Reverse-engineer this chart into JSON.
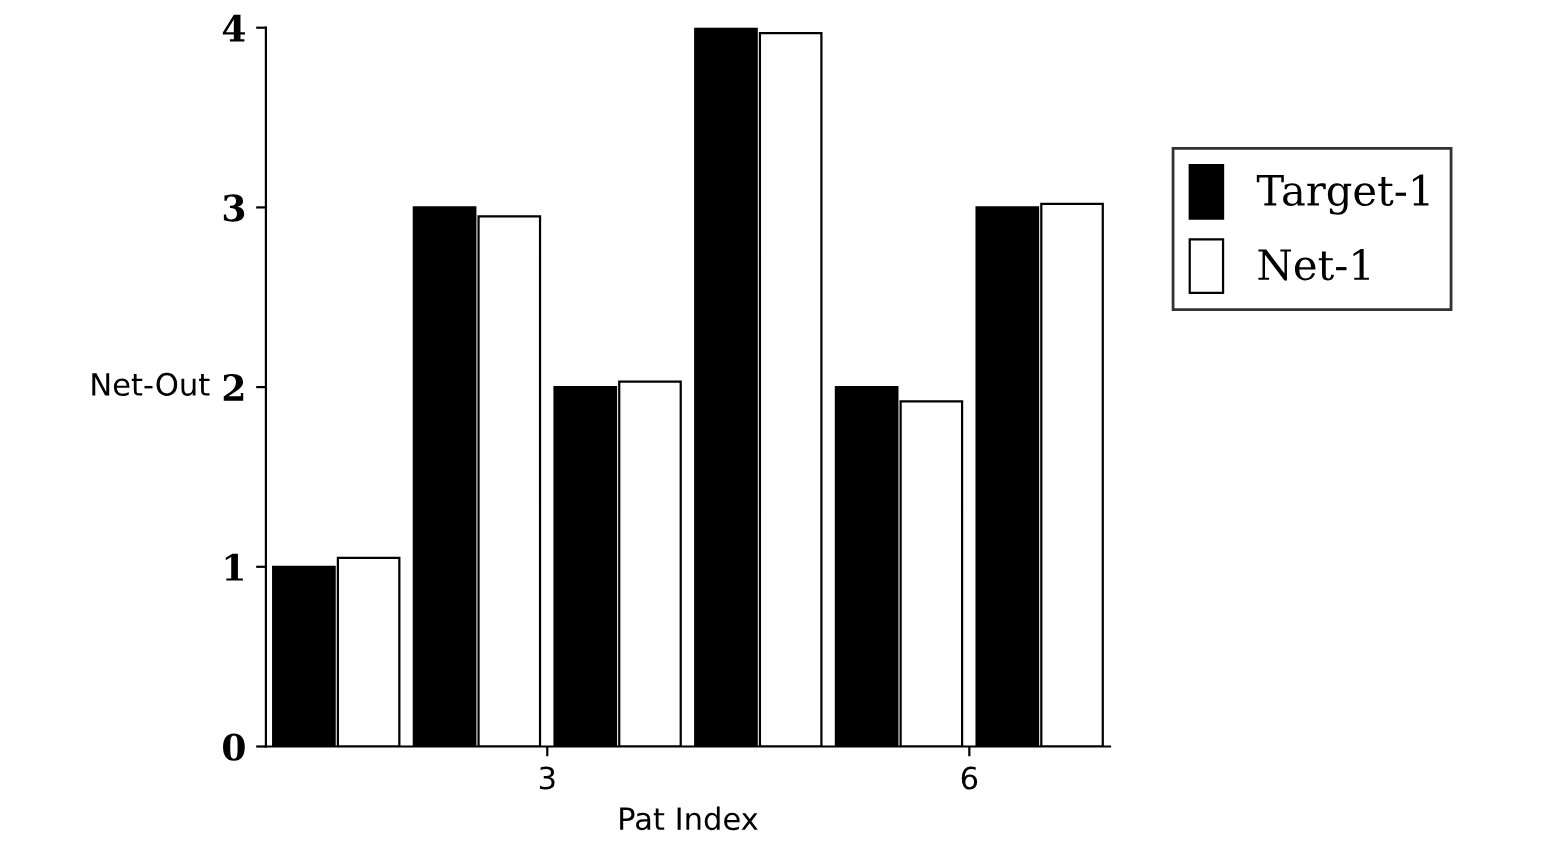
{
  "chart_data": {
    "type": "bar",
    "xlabel": "Pat Index",
    "ylabel": "Net-Out",
    "x": [
      1.5,
      2.5,
      3.5,
      4.5,
      5.5,
      6.5
    ],
    "series": [
      {
        "name": "Target-1",
        "color": "#000000",
        "values": [
          1,
          3,
          2,
          4,
          2,
          3
        ]
      },
      {
        "name": "Net-1",
        "color": "#ffffff",
        "values": [
          1.05,
          2.95,
          2.03,
          3.97,
          1.92,
          3.02
        ]
      }
    ],
    "xlim": [
      1,
      7
    ],
    "xticks": [
      3,
      6
    ],
    "ylim": [
      0,
      4
    ],
    "yticks": [
      0,
      1,
      2,
      3,
      4
    ],
    "grid": false,
    "legend": "right"
  }
}
